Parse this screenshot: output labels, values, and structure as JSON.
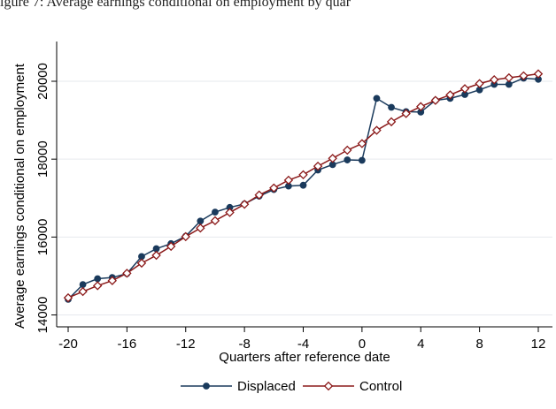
{
  "caption": "igure 7: Average earnings conditional on employment by quar",
  "chart_data": {
    "type": "line",
    "xlabel": "Quarters after reference date",
    "ylabel": "Average earnings conditional on employment",
    "xlim": [
      -20,
      12
    ],
    "ylim": [
      14000,
      20000
    ],
    "xticks": [
      -20,
      -16,
      -12,
      -8,
      -4,
      0,
      4,
      8,
      12
    ],
    "yticks": [
      14000,
      16000,
      18000,
      20000
    ],
    "grid": true,
    "legend_position": "bottom",
    "x": [
      -20,
      -19,
      -18,
      -17,
      -16,
      -15,
      -14,
      -13,
      -12,
      -11,
      -10,
      -9,
      -8,
      -7,
      -6,
      -5,
      -4,
      -3,
      -2,
      -1,
      0,
      1,
      2,
      3,
      4,
      5,
      6,
      7,
      8,
      9,
      10,
      11,
      12
    ],
    "series": [
      {
        "name": "Displaced",
        "color": "#1a3a5c",
        "marker": "circle",
        "values": [
          14400,
          14780,
          14930,
          14960,
          15060,
          15500,
          15700,
          15830,
          16020,
          16410,
          16640,
          16760,
          16850,
          17050,
          17220,
          17310,
          17330,
          17720,
          17860,
          17980,
          17970,
          19560,
          19330,
          19220,
          19210,
          19510,
          19560,
          19660,
          19780,
          19920,
          19920,
          20080,
          20050
        ]
      },
      {
        "name": "Control",
        "color": "#8b1a1a",
        "marker": "diamond",
        "values": [
          14440,
          14600,
          14750,
          14880,
          15070,
          15330,
          15530,
          15760,
          16010,
          16230,
          16420,
          16630,
          16840,
          17080,
          17260,
          17460,
          17600,
          17820,
          18020,
          18230,
          18400,
          18740,
          18960,
          19170,
          19350,
          19510,
          19650,
          19810,
          19940,
          20040,
          20090,
          20140,
          20190
        ]
      }
    ]
  }
}
